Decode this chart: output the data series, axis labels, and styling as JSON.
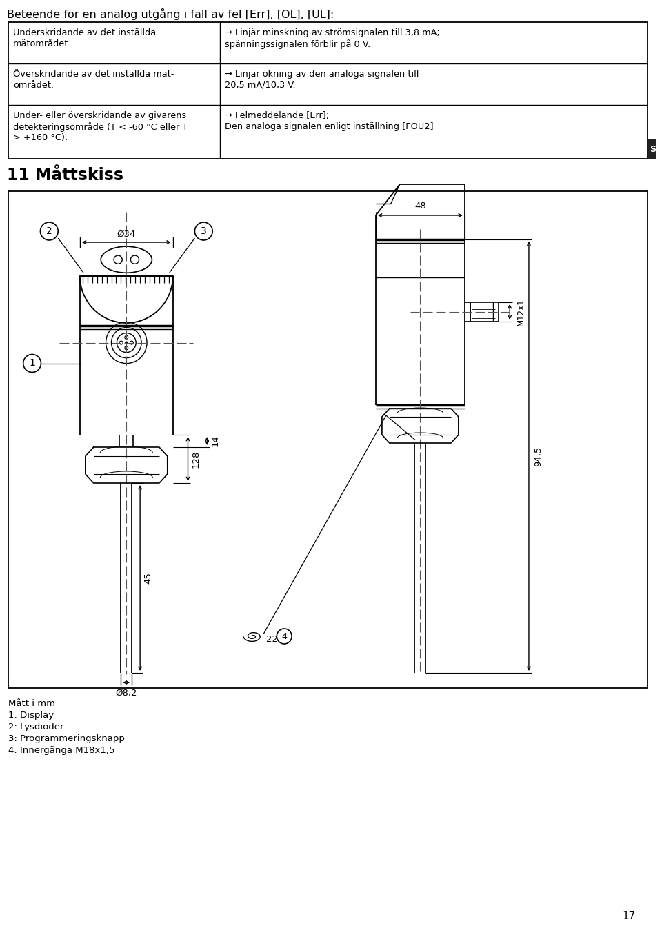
{
  "title": "Beteende för en analog utgång i fall av fel [Err], [OL], [UL]:",
  "section_title": "11 Måttskiss",
  "table_rows": [
    {
      "left": "Underskridande av det inställda\nmätområdet.",
      "right": "→ Linjär minskning av strömsignalen till 3,8 mA;\nspänningssignalen förblir på 0 V."
    },
    {
      "left": "Överskridande av det inställda mät-\nområdet.",
      "right": "→ Linjär ökning av den analoga signalen till\n20,5 mA/10,3 V."
    },
    {
      "left": "Under- eller överskridande av givarens\ndetekteringsområde (T < -60 °C eller T\n> +160 °C).",
      "right": "→ Felmeddelande [Err];\nDen analoga signalen enligt inställning [FOU2]"
    }
  ],
  "footer_lines": [
    "Mått i mm",
    "1: Display",
    "2: Lysdioder",
    "3: Programmeringsknapp",
    "4: Innergänga M18x1,5"
  ],
  "page_number": "17"
}
